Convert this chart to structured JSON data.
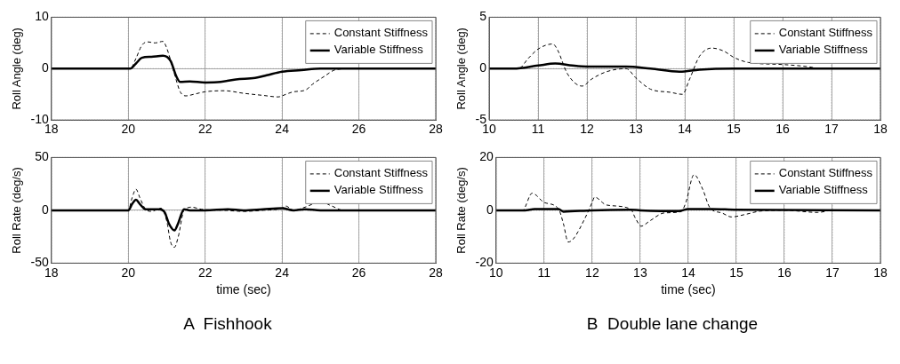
{
  "chart_data": [
    {
      "type": "line",
      "ylabel": "Roll Angle (deg)",
      "xlim": [
        18,
        28
      ],
      "xticks": [
        18,
        20,
        22,
        24,
        26,
        28
      ],
      "ylim": [
        -10,
        10
      ],
      "yticks": [
        -10,
        0,
        10
      ],
      "grid": true,
      "legend": "top right",
      "series": [
        {
          "name": "Constant Stiffness",
          "color": "#000000",
          "line_style": "dashed",
          "x": [
            18,
            20.05,
            20.2,
            20.35,
            20.5,
            20.7,
            20.9,
            21.0,
            21.2,
            21.35,
            21.5,
            21.7,
            22,
            22.5,
            23,
            23.5,
            23.9,
            24.1,
            24.3,
            24.6,
            24.8,
            25.1,
            25.4,
            25.8,
            28
          ],
          "values": [
            0,
            0,
            2,
            4.5,
            5.2,
            5,
            5.3,
            4,
            -1,
            -4.5,
            -5.3,
            -5,
            -4.5,
            -4.3,
            -4.8,
            -5.2,
            -5.5,
            -5,
            -4.5,
            -4.2,
            -3,
            -1.5,
            -0.2,
            0,
            0
          ]
        },
        {
          "name": "Variable Stiffness",
          "color": "#000000",
          "line_style": "solid",
          "x": [
            18,
            20.05,
            20.2,
            20.35,
            20.6,
            20.9,
            21.1,
            21.25,
            21.35,
            21.6,
            22,
            22.4,
            22.8,
            23.3,
            23.6,
            24,
            24.5,
            25,
            25.8,
            28
          ],
          "values": [
            0,
            0,
            1,
            2.1,
            2.3,
            2.5,
            1.5,
            -1.5,
            -2.6,
            -2.5,
            -2.7,
            -2.6,
            -2.1,
            -1.8,
            -1.3,
            -0.6,
            -0.3,
            0,
            0,
            0
          ]
        }
      ]
    },
    {
      "type": "line",
      "ylabel": "Roll Angle (deg)",
      "xlim": [
        10,
        18
      ],
      "xticks": [
        10,
        11,
        12,
        13,
        14,
        15,
        16,
        17,
        18
      ],
      "ylim": [
        -5,
        5
      ],
      "yticks": [
        -5,
        0,
        5
      ],
      "grid": true,
      "legend": "top right",
      "series": [
        {
          "name": "Constant Stiffness",
          "color": "#000000",
          "line_style": "dashed",
          "x": [
            10,
            10.6,
            10.8,
            11,
            11.3,
            11.4,
            11.6,
            11.9,
            12.1,
            12.4,
            12.8,
            13,
            13.3,
            13.7,
            13.95,
            14.1,
            14.3,
            14.55,
            14.8,
            15,
            15.3,
            16,
            16.5,
            16.8,
            18
          ],
          "values": [
            0,
            0,
            1,
            1.9,
            2.4,
            1.8,
            -0.5,
            -1.7,
            -1,
            -0.3,
            0,
            -0.9,
            -2,
            -2.3,
            -2.5,
            -1,
            1.2,
            2,
            1.7,
            1.1,
            0.6,
            0.4,
            0.2,
            0,
            0
          ]
        },
        {
          "name": "Variable Stiffness",
          "color": "#000000",
          "line_style": "solid",
          "x": [
            10,
            10.5,
            11,
            11.35,
            11.7,
            12,
            12.8,
            13.3,
            13.9,
            14.3,
            15,
            16,
            18
          ],
          "values": [
            0,
            0,
            0.3,
            0.5,
            0.3,
            0.2,
            0.2,
            0,
            -0.3,
            -0.1,
            0,
            0,
            0
          ]
        }
      ]
    },
    {
      "type": "line",
      "ylabel": "Roll Rate (deg/s)",
      "xlabel": "time (sec)",
      "annotations": [
        "A  Fishhook"
      ],
      "xlim": [
        18,
        28
      ],
      "xticks": [
        18,
        20,
        22,
        24,
        26,
        28
      ],
      "ylim": [
        -50,
        50
      ],
      "yticks": [
        -50,
        0,
        50
      ],
      "grid": true,
      "legend": "top right",
      "series": [
        {
          "name": "Constant Stiffness",
          "color": "#000000",
          "line_style": "dashed",
          "x": [
            18,
            20,
            20.1,
            20.2,
            20.3,
            20.45,
            20.6,
            20.85,
            21.0,
            21.1,
            21.2,
            21.3,
            21.45,
            21.65,
            21.9,
            22.5,
            23,
            23.5,
            24,
            24.1,
            24.3,
            24.6,
            25,
            25.3,
            25.6,
            28
          ],
          "values": [
            0,
            0,
            12,
            20,
            12,
            1,
            -1,
            2,
            -10,
            -30,
            -35,
            -25,
            0,
            3,
            1,
            0,
            -1,
            0,
            2,
            4,
            0,
            3,
            8,
            4,
            0,
            0
          ]
        },
        {
          "name": "Variable Stiffness",
          "color": "#000000",
          "line_style": "solid",
          "x": [
            18,
            20,
            20.1,
            20.2,
            20.3,
            20.45,
            20.8,
            20.95,
            21.05,
            21.2,
            21.3,
            21.45,
            21.6,
            22,
            22.6,
            23,
            23.5,
            24,
            24.3,
            24.6,
            25,
            28
          ],
          "values": [
            0,
            0,
            6,
            10,
            6,
            1,
            1,
            -2,
            -12,
            -19,
            -12,
            1,
            0,
            0,
            1,
            0,
            1,
            2,
            0,
            1,
            0,
            0
          ]
        }
      ]
    },
    {
      "type": "line",
      "ylabel": "Roll Rate (deg/s)",
      "xlabel": "time (sec)",
      "annotations": [
        "B  Double lane change"
      ],
      "xlim": [
        10,
        18
      ],
      "xticks": [
        10,
        11,
        12,
        13,
        14,
        15,
        16,
        17,
        18
      ],
      "ylim": [
        -20,
        20
      ],
      "yticks": [
        -20,
        0,
        20
      ],
      "grid": true,
      "legend": "top right",
      "series": [
        {
          "name": "Constant Stiffness",
          "color": "#000000",
          "line_style": "dashed",
          "x": [
            10,
            10.55,
            10.75,
            11,
            11.3,
            11.4,
            11.5,
            11.6,
            11.85,
            12,
            12.05,
            12.3,
            12.8,
            12.9,
            13.02,
            13.2,
            13.5,
            13.85,
            13.95,
            14.12,
            14.3,
            14.45,
            14.7,
            14.9,
            15.2,
            15.5,
            16,
            16.7,
            17,
            18
          ],
          "values": [
            0,
            0,
            6.5,
            3,
            0.5,
            -5,
            -12,
            -11,
            -3,
            3,
            5,
            2,
            0.5,
            -3,
            -6,
            -4,
            -1,
            -0.5,
            3,
            13.5,
            8,
            1,
            -1,
            -2.5,
            -1.5,
            -0.3,
            0,
            -0.8,
            0,
            0
          ]
        },
        {
          "name": "Variable Stiffness",
          "color": "#000000",
          "line_style": "solid",
          "x": [
            10,
            10.6,
            10.8,
            11.3,
            11.4,
            12,
            12.8,
            13,
            13.8,
            14,
            14.5,
            15,
            18
          ],
          "values": [
            0,
            0,
            0.5,
            0.5,
            -0.5,
            0,
            0.2,
            0,
            -0.3,
            0.5,
            0.5,
            0.2,
            0
          ]
        }
      ]
    }
  ]
}
